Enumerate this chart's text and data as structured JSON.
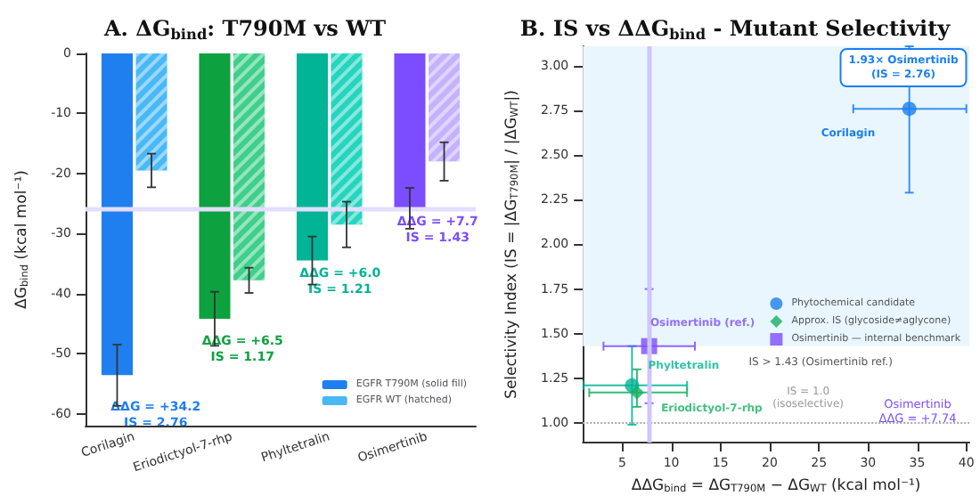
{
  "chart_data": [
    {
      "type": "bar",
      "title": "A. ΔG$_{bind}$: T790M vs WT",
      "ylabel": "ΔG$_{bind}$ (kcal mol⁻¹)",
      "categories": [
        "Corilagin",
        "Eriodictyol-7-rhp",
        "Phyltetralin",
        "Osimertinib"
      ],
      "series": [
        {
          "name": "EGFR T790M (solid fill)",
          "colors": [
            "#1f7fef",
            "#0da13f",
            "#00b495",
            "#7b4dff"
          ],
          "values": [
            -53.6,
            -44.2,
            -34.5,
            -25.8
          ],
          "errors": [
            5.1,
            4.5,
            4.0,
            3.4
          ]
        },
        {
          "name": "EGFR WT (hatched)",
          "colors": [
            "#49b8f7",
            "#3fcf8a",
            "#25d5bf",
            "#c4b2ff"
          ],
          "values": [
            -19.5,
            -37.8,
            -28.5,
            -18.0
          ],
          "errors": [
            2.8,
            2.1,
            3.8,
            3.2
          ]
        }
      ],
      "ylim": [
        -62,
        0
      ],
      "yticks": [
        0,
        -10,
        -20,
        -30,
        -40,
        -50,
        -60
      ],
      "ref_lines": [
        {
          "axis": "y",
          "value": -25.8,
          "color": "#e3deff"
        }
      ],
      "annotations": [
        "ΔΔG = +34.2\nIS = 2.76",
        "ΔΔG = +6.5\nIS = 1.17",
        "ΔΔG = +6.0\nIS = 1.21",
        "ΔΔG = +7.7\nIS = 1.43"
      ],
      "legend": "bottom right",
      "grid": false
    },
    {
      "type": "scatter",
      "title": "B. IS vs ΔΔG$_{bind}$ - Mutant Selectivity",
      "xlabel": "ΔΔG$_{bind}$ = ΔG$_{T790M}$ − ΔG$_{WT}$ (kcal mol⁻¹)",
      "ylabel": "Selectivity Index (IS = |ΔG$_{T790M}$| / |ΔG$_{WT}$|)",
      "series": [
        {
          "name": "Phytochemical candidate",
          "marker": "circle",
          "x": [
            34.2,
            6.0
          ],
          "values": [
            2.76,
            1.21
          ],
          "colors": [
            "#1a7ff0",
            "#00b495"
          ],
          "errors": [
            [
              2.29,
              3.11
            ],
            [
              0.99,
              1.43
            ]
          ],
          "xerrors": [
            [
              28.5,
              40
            ],
            [
              1.1,
              11.6
            ]
          ]
        },
        {
          "name": "Approx. IS (glycoside≠aglycone)",
          "marker": "diamond",
          "x": [
            6.5
          ],
          "values": [
            1.17
          ],
          "colors": [
            "#14b060"
          ],
          "errors": [
            [
              1.09,
              1.3
            ]
          ],
          "xerrors": [
            [
              1.65,
              11.6
            ]
          ]
        },
        {
          "name": "Osimertinib — internal benchmark",
          "marker": "square",
          "color": "#7c4dff",
          "x": [
            7.74
          ],
          "values": [
            1.43
          ],
          "errors": [
            [
              1.11,
              1.75
            ]
          ],
          "xerrors": [
            [
              3.1,
              12.4
            ]
          ]
        }
      ],
      "xlim": [
        1,
        40.3
      ],
      "xticks": [
        5,
        10,
        15,
        20,
        25,
        30,
        35,
        40
      ],
      "ylim": [
        0.89,
        3.11
      ],
      "yticks": [
        {
          "value": 1,
          "label": "1.00"
        },
        {
          "value": 1.25,
          "label": "1.25"
        },
        {
          "value": 1.5,
          "label": "1.50"
        },
        {
          "value": 1.75,
          "label": "1.75"
        },
        {
          "value": 2,
          "label": "2.00"
        },
        {
          "value": 2.25,
          "label": "2.25"
        },
        {
          "value": 2.5,
          "label": "2.50"
        },
        {
          "value": 2.75,
          "label": "2.75"
        },
        {
          "value": 3,
          "label": "3.00"
        }
      ],
      "ref_lines": [
        {
          "axis": "y",
          "value": 1.0,
          "label": "IS = 1.0\n(isoselective)",
          "color": "#aaaaaa",
          "line_style": "dotted"
        },
        {
          "axis": "x",
          "value": 7.74,
          "color": "#cfc6ff"
        }
      ],
      "bands": [
        {
          "axis": "y",
          "from": 1.43,
          "to": 3.11,
          "label": "IS > 1.43 (Osimertinib ref.)",
          "color": "#e9f6fd"
        }
      ],
      "annotations": [
        "1.93× Osimertinib\n(IS = 2.76)",
        "Corilagin",
        {
          "text": "Osimertinib (ref.)",
          "x": 7.74,
          "y": 1.43
        },
        {
          "text": "Phyltetralin",
          "x": 6.0,
          "y": 1.21
        },
        {
          "text": "Eriodictyol-7-rhp",
          "x": 6.5,
          "y": 1.17
        },
        "Osimertinib\nΔΔG = +7.74"
      ],
      "legend": "right",
      "grid": false
    }
  ]
}
